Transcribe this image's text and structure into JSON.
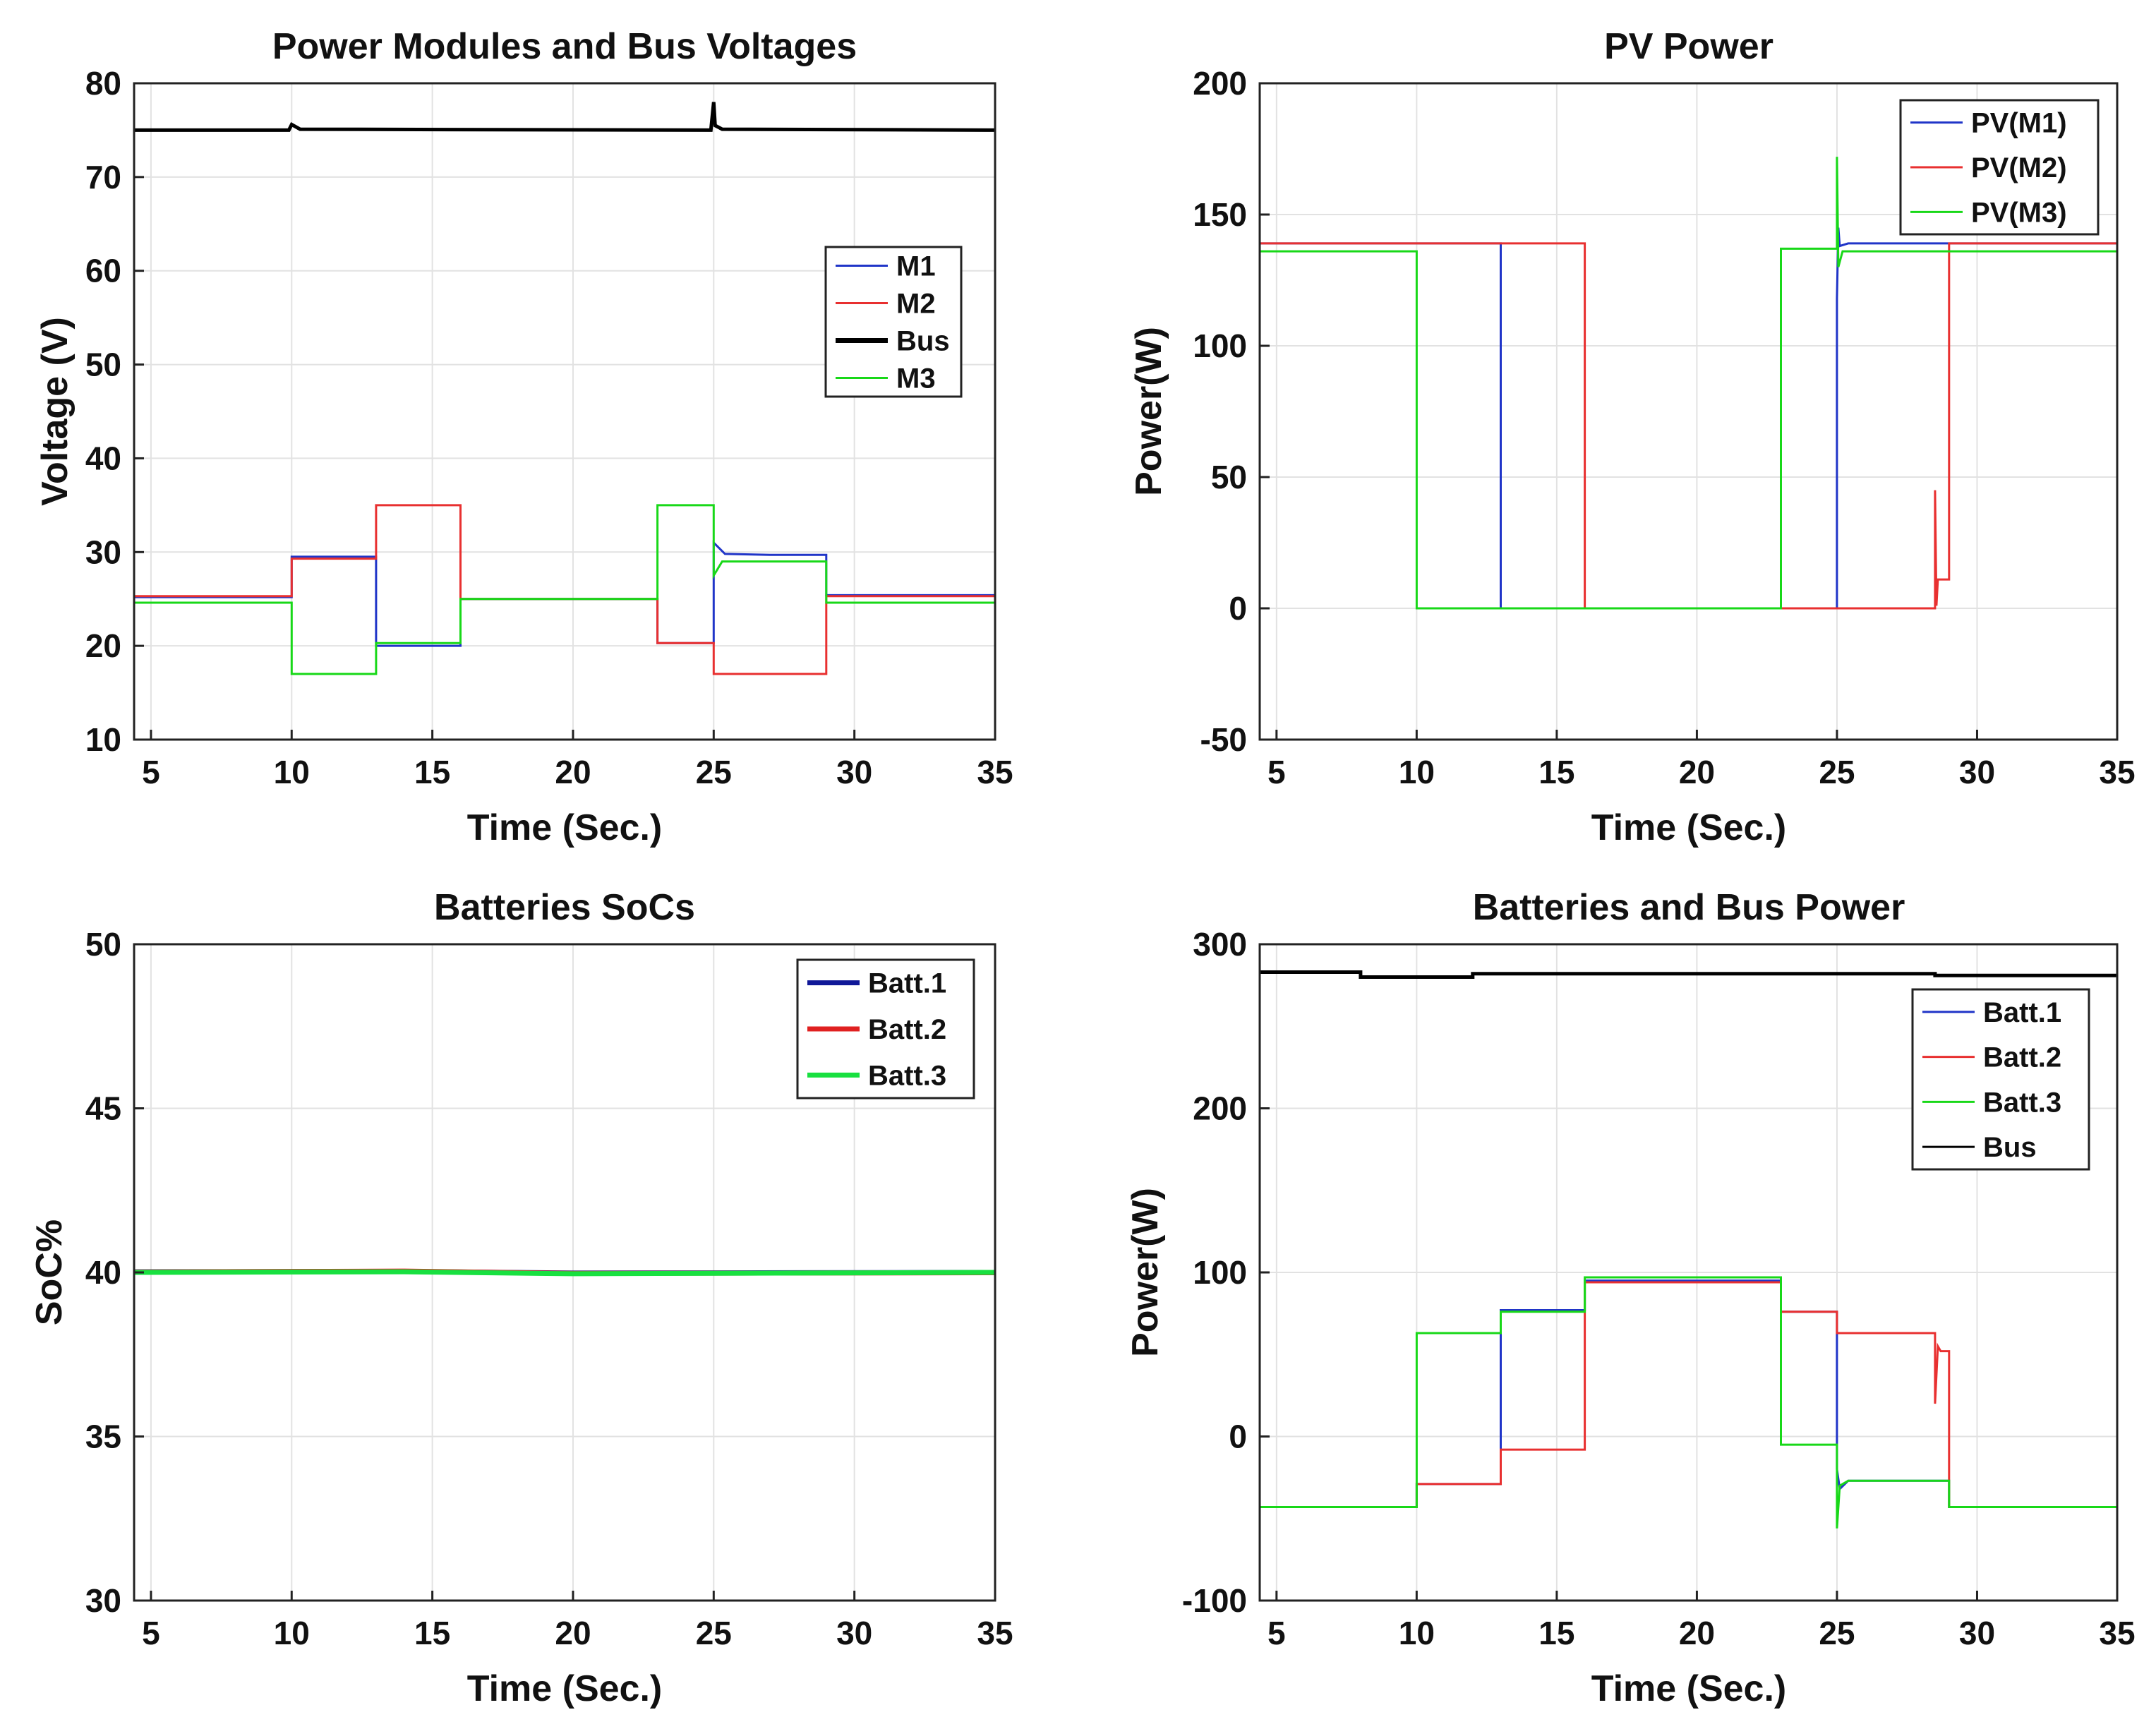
{
  "chart_data": [
    {
      "type": "line",
      "title": "Power Modules and Bus Voltages",
      "xlabel": "Time (Sec.)",
      "ylabel": "Voltage (V)",
      "xlim": [
        4.4,
        35
      ],
      "ylim": [
        10,
        80
      ],
      "xticks": [
        5,
        10,
        15,
        20,
        25,
        30,
        35
      ],
      "yticks": [
        10,
        20,
        30,
        40,
        50,
        60,
        70,
        80
      ],
      "legend_position": "right-middle",
      "series": [
        {
          "name": "M1",
          "color": "#2035c8",
          "x": [
            4.4,
            10,
            10,
            13,
            13,
            16,
            16,
            23,
            23,
            25,
            25,
            25.4,
            27,
            29,
            29,
            35
          ],
          "y": [
            25.2,
            25.2,
            29.5,
            29.5,
            20,
            20,
            25,
            25,
            20.3,
            20.3,
            31,
            29.8,
            29.7,
            29.7,
            25.4,
            25.4
          ]
        },
        {
          "name": "M2",
          "color": "#e83030",
          "x": [
            4.4,
            10,
            10,
            13,
            13,
            16,
            16,
            23,
            23,
            25,
            25,
            29,
            29,
            35
          ],
          "y": [
            25.3,
            25.3,
            29.3,
            29.3,
            35,
            35,
            25,
            25,
            20.3,
            20.3,
            17,
            17,
            25.3,
            25.3
          ]
        },
        {
          "name": "Bus",
          "color": "#000000",
          "x": [
            4.4,
            9.9,
            10,
            10.3,
            24.9,
            25,
            25.05,
            25.3,
            35
          ],
          "y": [
            75,
            75,
            75.6,
            75.1,
            75,
            78,
            75.5,
            75.1,
            75
          ]
        },
        {
          "name": "M3",
          "color": "#18d818",
          "x": [
            4.4,
            10,
            10,
            13,
            13,
            16,
            16,
            23,
            23,
            25,
            25,
            25.3,
            29,
            29,
            35
          ],
          "y": [
            24.6,
            24.6,
            17,
            17,
            20.3,
            20.3,
            25,
            25,
            35,
            35,
            27.5,
            29,
            29,
            24.6,
            24.6
          ]
        }
      ]
    },
    {
      "type": "line",
      "title": "PV Power",
      "xlabel": "Time (Sec.)",
      "ylabel": "Power(W)",
      "xlim": [
        4.4,
        35
      ],
      "ylim": [
        -50,
        200
      ],
      "xticks": [
        5,
        10,
        15,
        20,
        25,
        30,
        35
      ],
      "yticks": [
        -50,
        0,
        50,
        100,
        150,
        200
      ],
      "legend_position": "top-right",
      "series": [
        {
          "name": "PV(M1)",
          "color": "#2035c8",
          "x": [
            4.4,
            13,
            13,
            25,
            25,
            25.05,
            25.1,
            25.4,
            35
          ],
          "y": [
            139,
            139,
            0,
            0,
            118,
            145,
            138,
            139,
            139
          ]
        },
        {
          "name": "PV(M2)",
          "color": "#e83030",
          "x": [
            4.4,
            16,
            16,
            28.5,
            28.5,
            28.55,
            28.6,
            29,
            29,
            35
          ],
          "y": [
            139,
            139,
            0,
            0,
            45,
            1,
            11,
            11,
            139,
            139
          ]
        },
        {
          "name": "PV(M3)",
          "color": "#18d818",
          "x": [
            4.4,
            10,
            10,
            23,
            23,
            25,
            25,
            25.05,
            25.2,
            35
          ],
          "y": [
            136,
            136,
            0,
            0,
            137,
            137,
            172,
            130,
            136,
            136
          ]
        }
      ]
    },
    {
      "type": "line",
      "title": "Batteries SoCs",
      "xlabel": "Time (Sec.)",
      "ylabel": "SoC%",
      "xlim": [
        4.4,
        35
      ],
      "ylim": [
        30,
        50
      ],
      "xticks": [
        5,
        10,
        15,
        20,
        25,
        30,
        35
      ],
      "yticks": [
        30,
        35,
        40,
        45,
        50
      ],
      "legend_position": "top-right",
      "series": [
        {
          "name": "Batt.1",
          "color": "#101898",
          "x": [
            4.4,
            14,
            20,
            35
          ],
          "y": [
            40.02,
            40.03,
            39.98,
            40.0
          ]
        },
        {
          "name": "Batt.2",
          "color": "#e02020",
          "x": [
            4.4,
            14,
            20,
            35
          ],
          "y": [
            40.01,
            40.04,
            39.97,
            39.99
          ]
        },
        {
          "name": "Batt.3",
          "color": "#18e040",
          "x": [
            4.4,
            14,
            20,
            35
          ],
          "y": [
            40.0,
            40.02,
            39.96,
            40.0
          ]
        }
      ]
    },
    {
      "type": "line",
      "title": "Batteries and Bus Power",
      "xlabel": "Time (Sec.)",
      "ylabel": "Power(W)",
      "xlim": [
        4.4,
        35
      ],
      "ylim": [
        -100,
        300
      ],
      "xticks": [
        5,
        10,
        15,
        20,
        25,
        30,
        35
      ],
      "yticks": [
        -100,
        0,
        100,
        200,
        300
      ],
      "legend_position": "top-right",
      "series": [
        {
          "name": "Batt.1",
          "color": "#2035c8",
          "x": [
            4.4,
            10,
            10,
            13,
            13,
            16,
            16,
            23,
            23,
            25,
            25,
            25.1,
            25.4,
            29,
            29,
            35
          ],
          "y": [
            -43,
            -43,
            -29,
            -29,
            77,
            77,
            95,
            95,
            76,
            76,
            -20,
            -32,
            -27,
            -27,
            -43,
            -43
          ]
        },
        {
          "name": "Batt.2",
          "color": "#e83030",
          "x": [
            4.4,
            10,
            10,
            13,
            13,
            16,
            16,
            23,
            23,
            25,
            25,
            28.5,
            28.5,
            28.6,
            28.7,
            29,
            29,
            35
          ],
          "y": [
            -43,
            -43,
            -29,
            -29,
            -8,
            -8,
            94,
            94,
            76,
            76,
            63,
            63,
            20,
            55,
            52,
            52,
            -43,
            -43
          ]
        },
        {
          "name": "Batt.3",
          "color": "#18d818",
          "x": [
            4.4,
            10,
            10,
            13,
            13,
            16,
            16,
            23,
            23,
            25,
            25,
            25.1,
            25.4,
            29,
            29,
            35
          ],
          "y": [
            -43,
            -43,
            63,
            63,
            76,
            76,
            97,
            97,
            -5,
            -5,
            -56,
            -30,
            -27,
            -27,
            -43,
            -43
          ]
        },
        {
          "name": "Bus",
          "color": "#000000",
          "x": [
            4.4,
            8,
            8,
            12,
            12,
            28.5,
            28.5,
            35
          ],
          "y": [
            283,
            283,
            280,
            280,
            282,
            282,
            281,
            281
          ]
        }
      ]
    }
  ]
}
